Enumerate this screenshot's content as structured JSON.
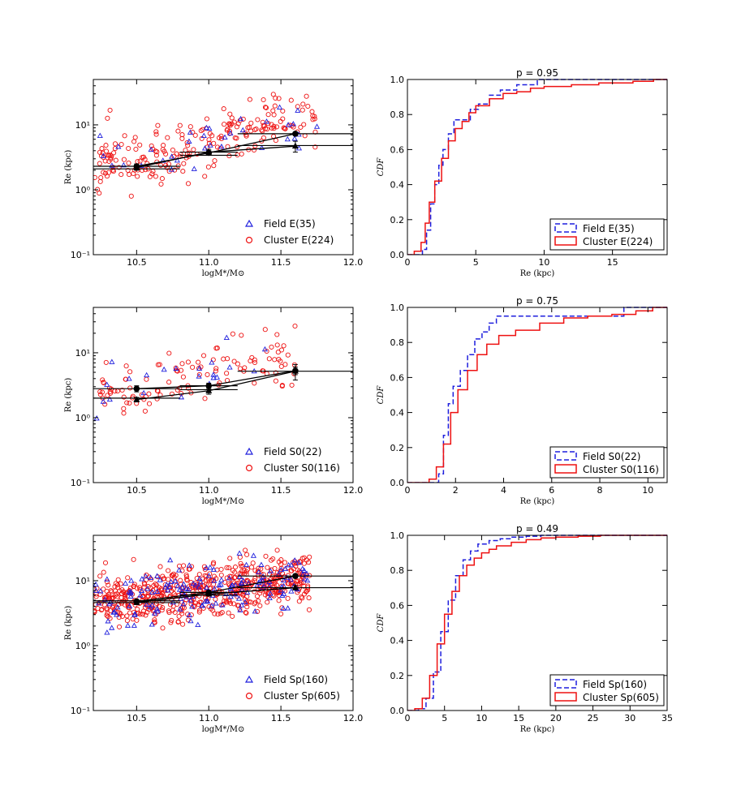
{
  "colors": {
    "field": "#1f1fdd",
    "cluster": "#ee1111",
    "median": "#000000",
    "axis": "#000000"
  },
  "chart_data": [
    {
      "type": "scatter",
      "xlabel": "logM*/M⊙",
      "ylabel": "Re (kpc)",
      "xlim": [
        10.2,
        12.0
      ],
      "ylim": [
        0.1,
        50
      ],
      "xticks": [
        "10.5",
        "11.0",
        "11.5",
        "12.0"
      ],
      "yticks": [
        "10⁻¹",
        "10⁰",
        "10¹"
      ],
      "legend": [
        "Field E(35)",
        "Cluster E(224)"
      ],
      "gen": {
        "seed": 11,
        "nField": 35,
        "nCluster": 224,
        "xmin": 10.21,
        "xmax": 11.75,
        "lgA": 0.35,
        "lgB": 0.5,
        "scatter": 0.23
      },
      "median_field": {
        "x": [
          10.5,
          11.0,
          11.6
        ],
        "y": [
          2.2,
          3.8,
          4.7
        ],
        "err": [
          0.2,
          0.4,
          0.9
        ]
      },
      "median_cluster": {
        "x": [
          10.5,
          11.0,
          11.6
        ],
        "y": [
          2.3,
          3.7,
          7.3
        ],
        "err": [
          0.2,
          0.3,
          0.4
        ]
      },
      "bin_lines": [
        {
          "x1": 10.2,
          "x2": 10.8,
          "y": 2.1
        },
        {
          "x1": 10.2,
          "x2": 10.8,
          "y": 2.3
        },
        {
          "x1": 10.8,
          "x2": 11.2,
          "y": 3.4
        },
        {
          "x1": 10.8,
          "x2": 11.2,
          "y": 3.8
        },
        {
          "x1": 11.2,
          "x2": 12.0,
          "y": 4.8
        },
        {
          "x1": 11.2,
          "x2": 12.0,
          "y": 7.3
        }
      ]
    },
    {
      "type": "line",
      "title": "p = 0.95",
      "xlabel": "Re (kpc)",
      "ylabel": "CDF",
      "xlim": [
        0,
        19
      ],
      "ylim": [
        0,
        1.0
      ],
      "xticks": [
        "0",
        "5",
        "10",
        "15"
      ],
      "yticks": [
        "0.0",
        "0.2",
        "0.4",
        "0.6",
        "0.8",
        "1.0"
      ],
      "legend": [
        "Field E(35)",
        "Cluster E(224)"
      ],
      "series": [
        {
          "name": "Field E(35)",
          "x": [
            0.0,
            1.1,
            1.4,
            1.7,
            2.0,
            2.3,
            2.6,
            3.0,
            3.4,
            4.0,
            4.6,
            5.2,
            6.0,
            6.8,
            8.0,
            9.5,
            19.0
          ],
          "y": [
            0,
            0.03,
            0.14,
            0.29,
            0.4,
            0.51,
            0.6,
            0.69,
            0.77,
            0.77,
            0.83,
            0.86,
            0.91,
            0.94,
            0.97,
            1.0,
            1.0
          ]
        },
        {
          "name": "Cluster E(224)",
          "x": [
            0.0,
            0.5,
            1.0,
            1.3,
            1.6,
            2.0,
            2.5,
            3.0,
            3.5,
            4.0,
            4.5,
            5.0,
            6.0,
            7.0,
            8.0,
            9.0,
            10.0,
            12.0,
            14.0,
            16.5,
            18.0,
            19.0
          ],
          "y": [
            0,
            0.02,
            0.07,
            0.18,
            0.3,
            0.42,
            0.55,
            0.65,
            0.72,
            0.76,
            0.81,
            0.85,
            0.89,
            0.92,
            0.93,
            0.95,
            0.96,
            0.97,
            0.98,
            0.99,
            1.0,
            1.0
          ]
        }
      ]
    },
    {
      "type": "scatter",
      "xlabel": "logM*/M⊙",
      "ylabel": "Re (kpc)",
      "xlim": [
        10.2,
        12.0
      ],
      "ylim": [
        0.1,
        50
      ],
      "xticks": [
        "10.5",
        "11.0",
        "11.5",
        "12.0"
      ],
      "yticks": [
        "10⁻¹",
        "10⁰",
        "10¹"
      ],
      "legend": [
        "Field S0(22)",
        "Cluster S0(116)"
      ],
      "gen": {
        "seed": 23,
        "nField": 22,
        "nCluster": 116,
        "xmin": 10.21,
        "xmax": 11.6,
        "lgA": 0.4,
        "lgB": 0.4,
        "scatter": 0.2
      },
      "median_field": {
        "x": [
          10.5,
          11.0,
          11.6
        ],
        "y": [
          1.9,
          2.6,
          5.2
        ],
        "err": [
          0.15,
          0.3,
          1.4
        ]
      },
      "median_cluster": {
        "x": [
          10.5,
          11.0,
          11.6
        ],
        "y": [
          2.8,
          3.1,
          5.3
        ],
        "err": [
          0.3,
          0.3,
          0.7
        ]
      },
      "bin_lines": [
        {
          "x1": 10.2,
          "x2": 10.8,
          "y": 2.0
        },
        {
          "x1": 10.2,
          "x2": 10.8,
          "y": 2.8
        },
        {
          "x1": 10.8,
          "x2": 11.2,
          "y": 2.7
        },
        {
          "x1": 10.8,
          "x2": 11.2,
          "y": 3.1
        },
        {
          "x1": 11.2,
          "x2": 12.0,
          "y": 5.2
        }
      ]
    },
    {
      "type": "line",
      "title": "p = 0.75",
      "xlabel": "Re (kpc)",
      "ylabel": "CDF",
      "xlim": [
        0,
        10.8
      ],
      "ylim": [
        0,
        1.0
      ],
      "xticks": [
        "0",
        "2",
        "4",
        "6",
        "8",
        "10"
      ],
      "yticks": [
        "0.0",
        "0.2",
        "0.4",
        "0.6",
        "0.8",
        "1.0"
      ],
      "legend": [
        "Field S0(22)",
        "Cluster S0(116)"
      ],
      "series": [
        {
          "name": "Field S0(22)",
          "x": [
            0.0,
            1.3,
            1.5,
            1.7,
            1.9,
            2.2,
            2.5,
            2.8,
            3.1,
            3.4,
            3.7,
            4.2,
            9.0,
            10.8
          ],
          "y": [
            0,
            0.05,
            0.27,
            0.45,
            0.55,
            0.64,
            0.73,
            0.82,
            0.86,
            0.91,
            0.95,
            0.95,
            1.0,
            1.0
          ]
        },
        {
          "name": "Cluster S0(116)",
          "x": [
            0.0,
            0.9,
            1.2,
            1.5,
            1.8,
            2.1,
            2.5,
            2.9,
            3.3,
            3.8,
            4.5,
            5.5,
            6.5,
            7.5,
            8.5,
            9.5,
            10.2,
            10.8
          ],
          "y": [
            0,
            0.02,
            0.09,
            0.22,
            0.4,
            0.53,
            0.64,
            0.73,
            0.79,
            0.84,
            0.87,
            0.91,
            0.94,
            0.95,
            0.96,
            0.98,
            1.0,
            1.0
          ]
        }
      ]
    },
    {
      "type": "scatter",
      "xlabel": "logM*/M⊙",
      "ylabel": "Re (kpc)",
      "xlim": [
        10.2,
        12.0
      ],
      "ylim": [
        0.1,
        50
      ],
      "xticks": [
        "10.5",
        "11.0",
        "11.5",
        "12.0"
      ],
      "yticks": [
        "10⁻¹",
        "10⁰",
        "10¹"
      ],
      "legend": [
        "Field Sp(160)",
        "Cluster Sp(605)"
      ],
      "gen": {
        "seed": 37,
        "nField": 160,
        "nCluster": 605,
        "xmin": 10.2,
        "xmax": 11.7,
        "lgA": 0.65,
        "lgB": 0.25,
        "scatter": 0.2
      },
      "median_field": {
        "x": [
          10.5,
          11.0,
          11.6
        ],
        "y": [
          4.6,
          6.2,
          7.8
        ],
        "err": [
          0.3,
          0.4,
          0.6
        ]
      },
      "median_cluster": {
        "x": [
          10.5,
          11.0,
          11.6
        ],
        "y": [
          4.8,
          6.6,
          11.8
        ],
        "err": [
          0.3,
          0.4,
          0.8
        ]
      },
      "bin_lines": [
        {
          "x1": 10.2,
          "x2": 10.8,
          "y": 4.6
        },
        {
          "x1": 10.2,
          "x2": 10.8,
          "y": 4.9
        },
        {
          "x1": 10.8,
          "x2": 11.2,
          "y": 6.0
        },
        {
          "x1": 10.8,
          "x2": 11.2,
          "y": 6.6
        },
        {
          "x1": 11.2,
          "x2": 12.0,
          "y": 7.8
        },
        {
          "x1": 11.2,
          "x2": 12.0,
          "y": 11.8
        }
      ]
    },
    {
      "type": "line",
      "title": "p = 0.49",
      "xlabel": "Re (kpc)",
      "ylabel": "CDF",
      "xlim": [
        0,
        35
      ],
      "ylim": [
        0,
        1.0
      ],
      "xticks": [
        "0",
        "5",
        "10",
        "15",
        "20",
        "25",
        "30",
        "35"
      ],
      "yticks": [
        "0.0",
        "0.2",
        "0.4",
        "0.6",
        "0.8",
        "1.0"
      ],
      "legend": [
        "Field Sp(160)",
        "Cluster Sp(605)"
      ],
      "series": [
        {
          "name": "Field Sp(160)",
          "x": [
            0.0,
            1.5,
            2.5,
            3.5,
            4.5,
            5.5,
            6.5,
            7.5,
            8.5,
            9.5,
            11.0,
            12.5,
            14.0,
            16.0,
            18.0,
            35.0
          ],
          "y": [
            0,
            0.01,
            0.07,
            0.22,
            0.45,
            0.63,
            0.77,
            0.86,
            0.91,
            0.95,
            0.97,
            0.98,
            0.99,
            0.995,
            1.0,
            1.0
          ]
        },
        {
          "name": "Cluster Sp(605)",
          "x": [
            0.0,
            1.0,
            2.0,
            3.0,
            4.0,
            5.0,
            6.0,
            7.0,
            8.0,
            9.0,
            10.0,
            11.0,
            12.0,
            14.0,
            16.0,
            18.0,
            20.0,
            23.0,
            26.0,
            30.0,
            35.0
          ],
          "y": [
            0,
            0.01,
            0.07,
            0.2,
            0.38,
            0.55,
            0.68,
            0.77,
            0.83,
            0.87,
            0.9,
            0.92,
            0.94,
            0.96,
            0.975,
            0.985,
            0.99,
            0.995,
            1.0,
            1.0,
            1.0
          ]
        }
      ]
    }
  ]
}
